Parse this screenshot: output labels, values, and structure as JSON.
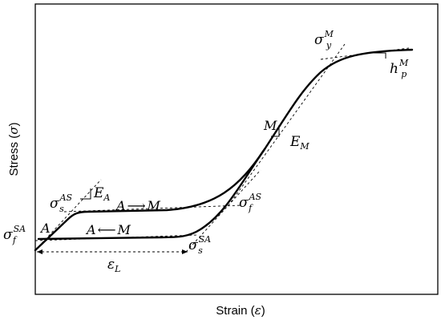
{
  "axes": {
    "xlabel": "Strain (",
    "xlabel_sym": "ε",
    "xlabel_end": ")",
    "ylabel": "Stress (",
    "ylabel_sym": "σ",
    "ylabel_end": ")"
  },
  "labels": {
    "sigma_s_AS": {
      "base": "σ",
      "sub": "s",
      "sup": "AS"
    },
    "E_A": {
      "base": "E",
      "sub": "A"
    },
    "forward": {
      "from": "A",
      "arrow": "⟶",
      "to": "M"
    },
    "reverse": {
      "from": "A",
      "arrow": "⟵",
      "to": "M"
    },
    "sigma_f_AS": {
      "base": "σ",
      "sub": "f",
      "sup": "AS"
    },
    "sigma_f_SA": {
      "base": "σ",
      "sub": "f",
      "sup": "SA"
    },
    "sigma_s_SA": {
      "base": "σ",
      "sub": "s",
      "sup": "SA"
    },
    "A": "A",
    "epsilon_L": {
      "base": "ε",
      "sub": "L"
    },
    "M": "M",
    "E_M": {
      "base": "E",
      "sub": "M"
    },
    "sigma_y_M": {
      "base": "σ",
      "sub": "y",
      "sup": "M"
    },
    "h_p_M": {
      "base": "h",
      "sub": "p",
      "sup": "M"
    }
  }
}
